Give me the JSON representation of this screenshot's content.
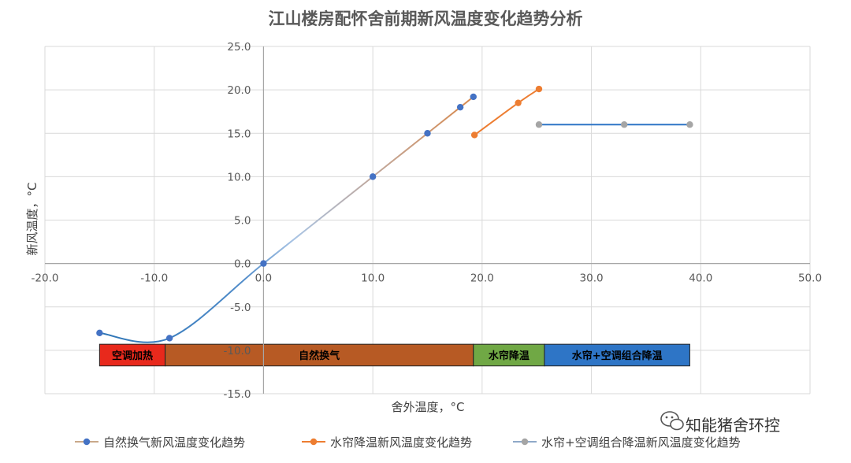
{
  "chart_data": {
    "type": "line",
    "title": "江山楼房配怀舍前期新风温度变化趋势分析",
    "xlabel": "舍外温度，°C",
    "ylabel": "新风温度，°C",
    "xlim": [
      -20,
      50
    ],
    "ylim": [
      -15,
      25
    ],
    "x_ticks": [
      "-20.0",
      "-10.0",
      "0.0",
      "10.0",
      "20.0",
      "30.0",
      "40.0",
      "50.0"
    ],
    "y_ticks": [
      "25.0",
      "20.0",
      "15.0",
      "10.0",
      "5.0",
      "0.0",
      "-5.0",
      "-10.0",
      "-15.0"
    ],
    "grid": true,
    "legend": "bottom",
    "series": [
      {
        "name": "自然换气新风温度变化趋势",
        "color": "#4472C4",
        "points": [
          [
            -15,
            -8
          ],
          [
            -8.6,
            -8.6
          ],
          [
            0,
            0
          ],
          [
            10,
            10
          ],
          [
            15,
            15
          ],
          [
            18,
            18
          ],
          [
            19.2,
            19.2
          ]
        ]
      },
      {
        "name": "水帘降温新风温度变化趋势",
        "color": "#ED7D31",
        "points": [
          [
            19.3,
            14.8
          ],
          [
            23.3,
            18.5
          ],
          [
            25.2,
            20.1
          ]
        ]
      },
      {
        "name": "水帘+空调组合降温新风温度变化趋势",
        "color": "#A5A5A5",
        "points": [
          [
            25.2,
            16
          ],
          [
            33,
            16
          ],
          [
            39,
            16
          ]
        ]
      }
    ],
    "phases": [
      {
        "label": "空调加热",
        "x0": -15,
        "x1": -9,
        "color": "#E8291C"
      },
      {
        "label": "自然换气",
        "x0": -9,
        "x1": 19.2,
        "color": "#B75A24"
      },
      {
        "label": "水帘降温",
        "x0": 19.2,
        "x1": 25.7,
        "color": "#70A845"
      },
      {
        "label": "水帘+空调组合降温",
        "x0": 25.7,
        "x1": 39,
        "color": "#2E75C6"
      }
    ],
    "phase_band_y": [
      -9.3,
      -11.8
    ]
  },
  "watermark": {
    "icon": "wechat-icon",
    "text": "知能猪舍环控"
  }
}
